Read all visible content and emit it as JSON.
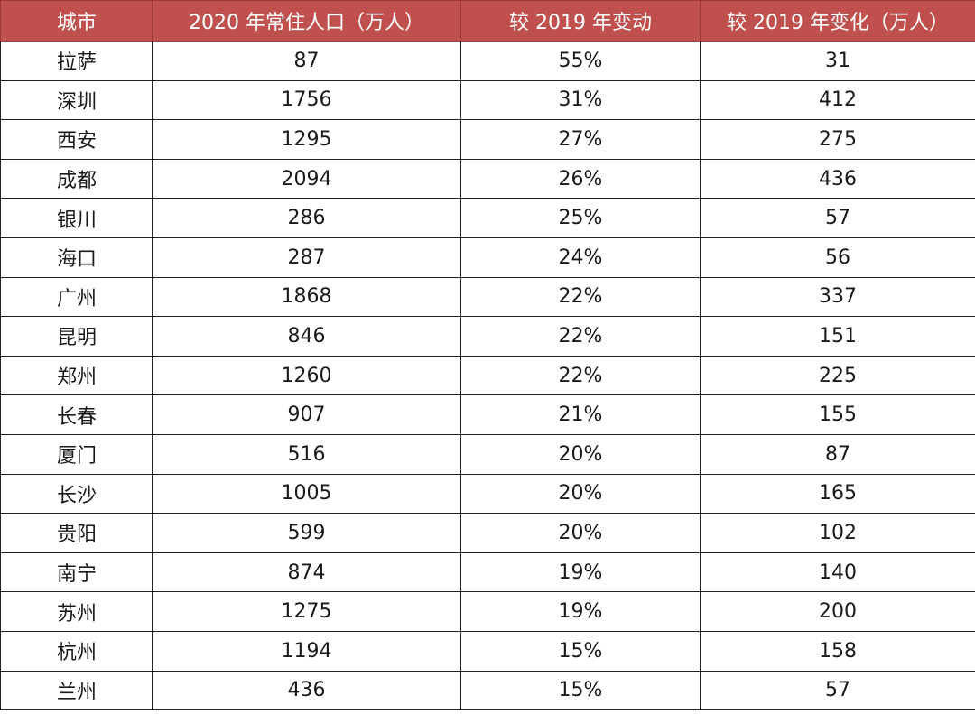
{
  "table": {
    "headers": [
      "城市",
      "2020 年常住人口（万人）",
      "较 2019 年变动",
      "较 2019 年变化（万人）"
    ],
    "rows": [
      [
        "拉萨",
        "87",
        "55%",
        "31"
      ],
      [
        "深圳",
        "1756",
        "31%",
        "412"
      ],
      [
        "西安",
        "1295",
        "27%",
        "275"
      ],
      [
        "成都",
        "2094",
        "26%",
        "436"
      ],
      [
        "银川",
        "286",
        "25%",
        "57"
      ],
      [
        "海口",
        "287",
        "24%",
        "56"
      ],
      [
        "广州",
        "1868",
        "22%",
        "337"
      ],
      [
        "昆明",
        "846",
        "22%",
        "151"
      ],
      [
        "郑州",
        "1260",
        "22%",
        "225"
      ],
      [
        "长春",
        "907",
        "21%",
        "155"
      ],
      [
        "厦门",
        "516",
        "20%",
        "87"
      ],
      [
        "长沙",
        "1005",
        "20%",
        "165"
      ],
      [
        "贵阳",
        "599",
        "20%",
        "102"
      ],
      [
        "南宁",
        "874",
        "19%",
        "140"
      ],
      [
        "苏州",
        "1275",
        "19%",
        "200"
      ],
      [
        "杭州",
        "1194",
        "15%",
        "158"
      ],
      [
        "兰州",
        "436",
        "15%",
        "57"
      ]
    ]
  },
  "colors": {
    "header_background": "#c0504d",
    "header_text": "#ffffff",
    "grid_line": "#222222"
  }
}
